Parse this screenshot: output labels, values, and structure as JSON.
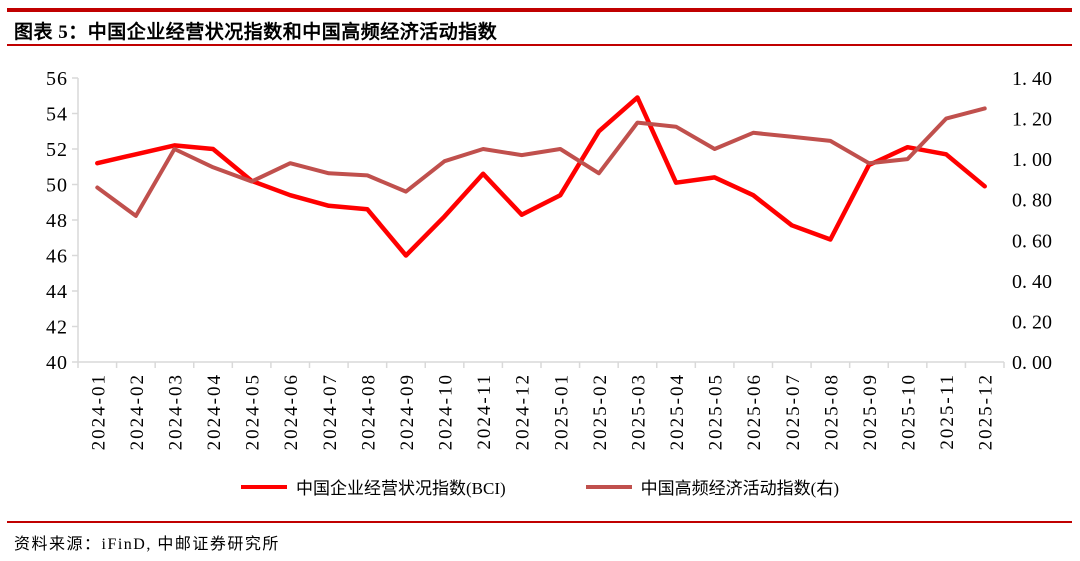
{
  "figure": {
    "title": "图表 5：中国企业经营状况指数和中国高频经济活动指数",
    "source_note": "资料来源：iFinD, 中邮证券研究所"
  },
  "colors": {
    "rule": "#c00000",
    "axis_line": "#d9d9d9",
    "tick_text": "#000000",
    "bci_line": "#ff0000",
    "hf_line": "#c0504d"
  },
  "chart_data": {
    "type": "line",
    "title": "中国企业经营状况指数和中国高频经济活动指数",
    "categories": [
      "2024-01",
      "2024-02",
      "2024-03",
      "2024-04",
      "2024-05",
      "2024-06",
      "2024-07",
      "2024-08",
      "2024-09",
      "2024-10",
      "2024-11",
      "2024-12",
      "2025-01",
      "2025-02",
      "2025-03",
      "2025-04",
      "2025-05",
      "2025-06",
      "2025-07",
      "2025-08",
      "2025-09",
      "2025-10",
      "2025-11",
      "2025-12"
    ],
    "series": [
      {
        "name": "中国企业经营状况指数(BCI)",
        "axis": "left",
        "color": "#ff0000",
        "values": [
          51.2,
          51.7,
          52.2,
          52.0,
          50.2,
          49.4,
          48.8,
          48.6,
          46.0,
          48.2,
          50.6,
          48.3,
          49.4,
          53.0,
          54.9,
          50.1,
          50.4,
          49.4,
          47.7,
          46.9,
          51.1,
          52.1,
          51.7,
          49.9
        ]
      },
      {
        "name": "中国高频经济活动指数(右)",
        "axis": "right",
        "color": "#c0504d",
        "values": [
          0.86,
          0.72,
          1.05,
          0.96,
          0.89,
          0.98,
          0.93,
          0.92,
          0.84,
          0.99,
          1.05,
          1.02,
          1.05,
          0.93,
          1.18,
          1.16,
          1.05,
          1.13,
          1.11,
          1.09,
          0.98,
          1.0,
          1.2,
          1.25
        ]
      }
    ],
    "left_axis": {
      "min": 40,
      "max": 56,
      "tick_step": 2,
      "tick_labels_top_to_bottom": [
        "56",
        "54",
        "52",
        "50",
        "48",
        "46",
        "44",
        "42",
        "40"
      ]
    },
    "right_axis": {
      "min": 0.0,
      "max": 1.4,
      "tick_step": 0.2,
      "tick_labels_top_to_bottom": [
        "1. 40",
        "1. 20",
        "1. 00",
        "0. 80",
        "0. 60",
        "0. 40",
        "0. 20",
        "0. 00"
      ]
    },
    "grid": false,
    "legend_position": "bottom"
  }
}
